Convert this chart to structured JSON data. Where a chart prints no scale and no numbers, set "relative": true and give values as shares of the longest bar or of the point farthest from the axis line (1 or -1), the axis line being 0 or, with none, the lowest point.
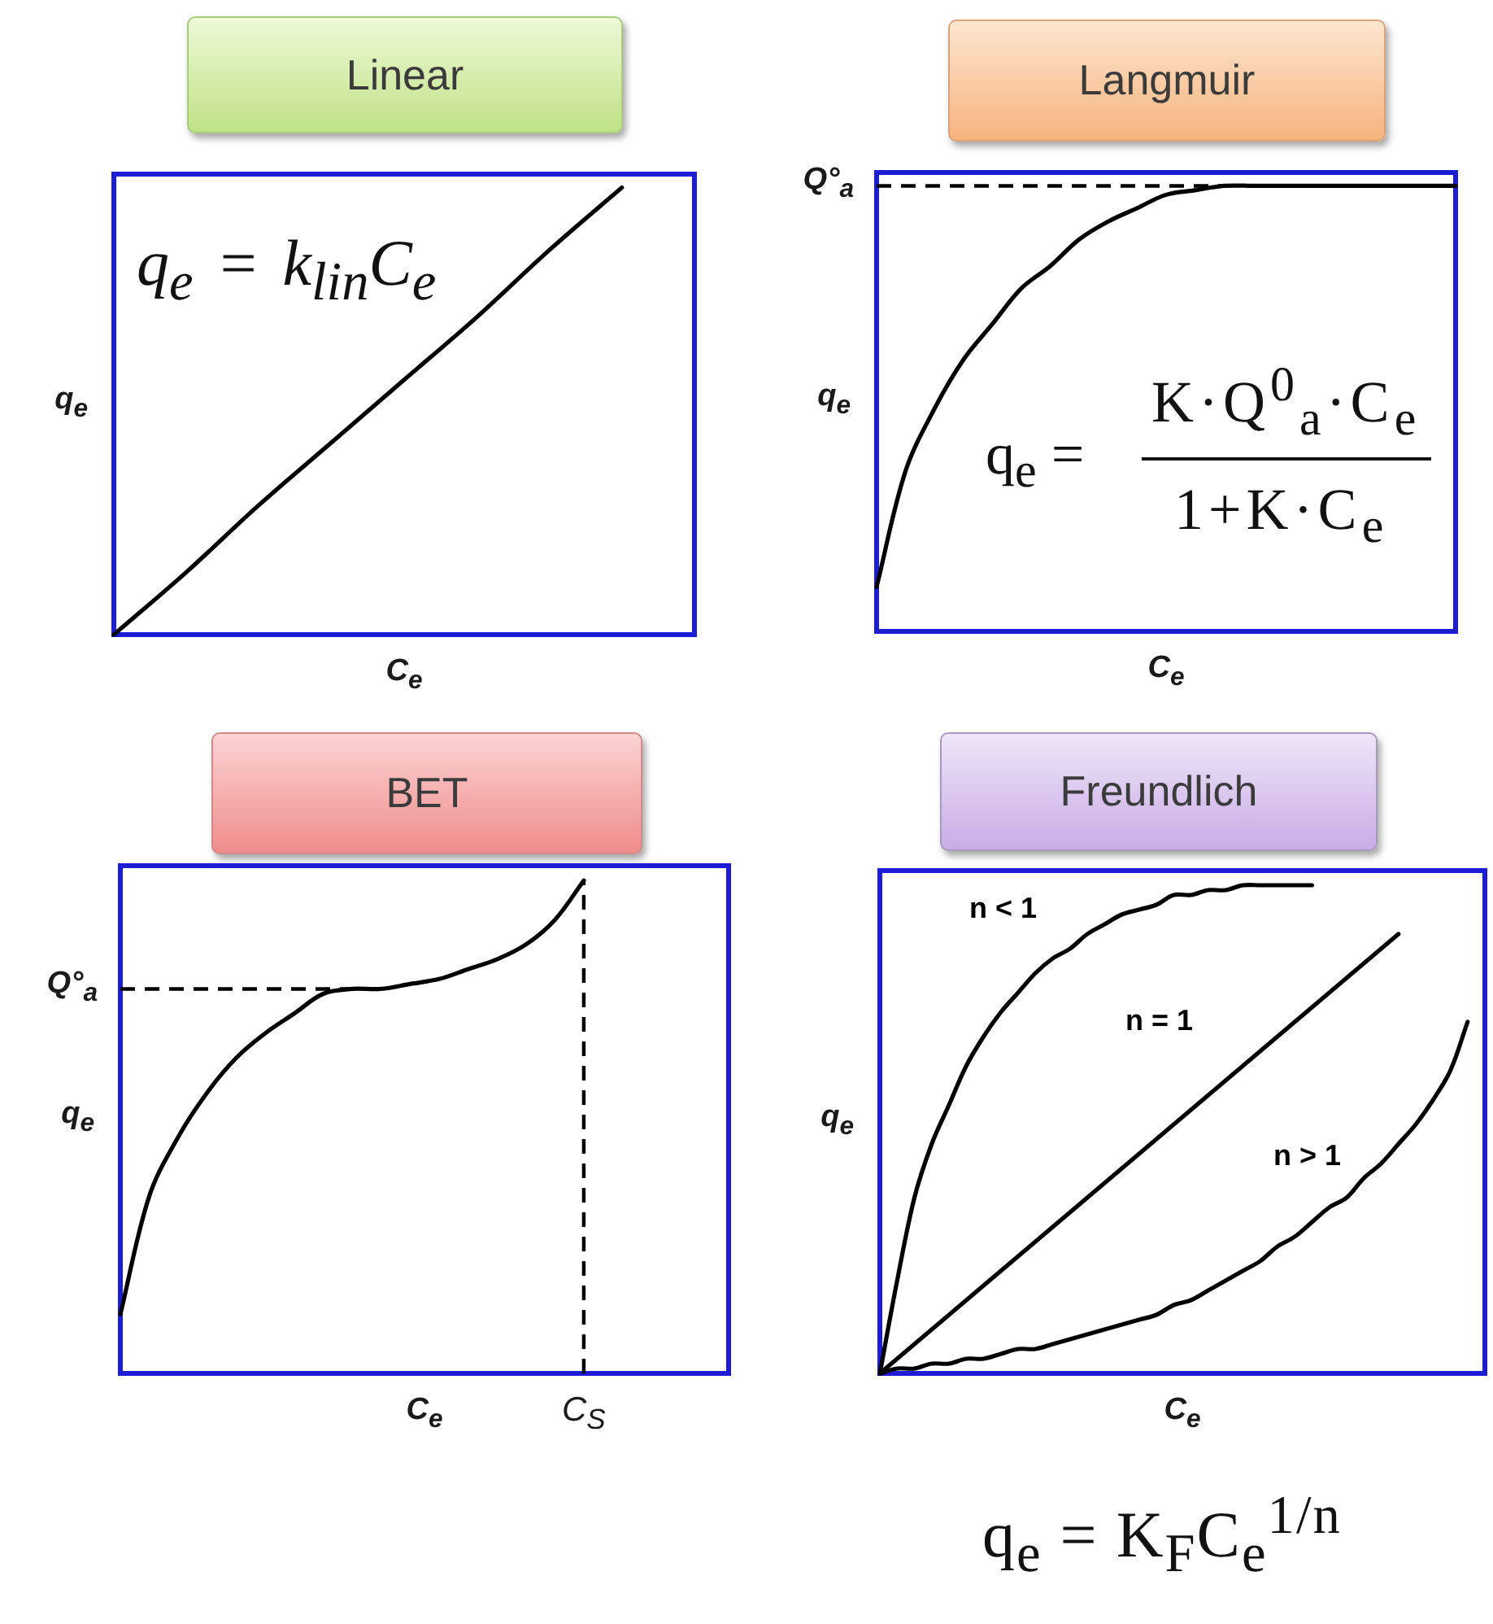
{
  "chart_data": [
    {
      "type": "line",
      "title": "Linear",
      "xlabel": "C$_{e}$",
      "ylabel": "q$_{e}$",
      "relative": true,
      "annotations": [
        "q$_{e}$ =  k$_{lin}$C$_{e}$"
      ],
      "categories": [
        null,
        null,
        null,
        null,
        null,
        null,
        null,
        null,
        null
      ],
      "series": [
        {
          "color": "#000000",
          "values": [
            0,
            0.14,
            0.29,
            0.43,
            0.57,
            0.71,
            0.86,
            1,
            null
          ]
        }
      ]
    },
    {
      "type": "line",
      "title": "Langmuir",
      "xlabel": "C$_{e}$",
      "ylabel": "q$_{e}$",
      "relative": true,
      "annotations": [
        "q$_{e}$ =",
        "K·Q$^{0}$$_{a}$·C$_{e}$",
        "1+K·C$_{e}$"
      ],
      "categories": [
        null,
        null,
        null,
        null,
        null,
        null,
        null,
        null,
        null,
        null,
        null,
        null,
        null,
        null,
        null,
        null,
        null,
        null,
        null,
        null,
        null
      ],
      "series": [
        {
          "color": "#000000",
          "values": [
            0.1,
            0.36,
            0.5,
            0.61,
            0.69,
            0.77,
            0.82,
            0.88,
            0.92,
            0.95,
            0.98,
            0.99,
            1,
            1,
            1,
            1,
            1,
            1,
            1,
            1,
            1
          ]
        }
      ],
      "ref_lines": [
        {
          "axis": "y",
          "value": 1,
          "label": "Q°$_{a}$",
          "color": "#000000",
          "line_style": "dashed"
        }
      ]
    },
    {
      "type": "line",
      "title": "BET",
      "xlabel": "C$_{e}$",
      "ylabel": "q$_{e}$",
      "relative": true,
      "categories": [
        null,
        null,
        null,
        null,
        null,
        null,
        null,
        null,
        null,
        null,
        null,
        null,
        null,
        null,
        null,
        null,
        null,
        null,
        null,
        null,
        null,
        null
      ],
      "series": [
        {
          "color": "#000000",
          "values": [
            0.12,
            0.36,
            0.48,
            0.57,
            0.64,
            0.69,
            0.73,
            0.77,
            0.78,
            0.78,
            0.79,
            0.8,
            0.82,
            0.84,
            0.87,
            0.92,
            1,
            null,
            null,
            null,
            null,
            null
          ]
        }
      ],
      "ref_lines": [
        {
          "axis": "y",
          "value": 0.78,
          "label": "Q°$_{a}$",
          "color": "#000000",
          "line_style": "dashed"
        },
        {
          "axis": "x",
          "value": "C$_{S}$",
          "color": "#000000",
          "line_style": "dashed"
        }
      ]
    },
    {
      "type": "line",
      "title": "Freundlich",
      "xlabel": "C$_{e}$",
      "ylabel": "q$_{e}$",
      "relative": true,
      "annotations": [
        "q$_{e}$ = K$_{F}$C$_{e}$$^{1/n}$"
      ],
      "categories": [
        null,
        null,
        null,
        null,
        null,
        null,
        null,
        null,
        null,
        null,
        null,
        null,
        null,
        null,
        null,
        null,
        null,
        null,
        null,
        null,
        null,
        null,
        null,
        null,
        null,
        null,
        null,
        null,
        null,
        null,
        null,
        null,
        null,
        null,
        null,
        null
      ],
      "series": [
        {
          "name": "n < 1",
          "color": "#000000",
          "values": [
            0,
            0.19,
            0.36,
            0.47,
            0.55,
            0.63,
            0.69,
            0.74,
            0.78,
            0.82,
            0.85,
            0.87,
            0.9,
            0.92,
            0.94,
            0.95,
            0.96,
            0.98,
            0.98,
            0.99,
            0.99,
            1,
            1,
            1,
            1,
            1,
            null,
            null,
            null,
            null,
            null,
            null,
            null,
            null,
            null,
            null
          ]
        },
        {
          "name": "n = 1",
          "color": "#000000",
          "values": [
            0,
            0.03,
            0.06,
            0.09,
            0.12,
            0.15,
            0.18,
            0.21,
            0.24,
            0.27,
            0.3,
            0.33,
            0.36,
            0.39,
            0.42,
            0.45,
            0.48,
            0.51,
            0.54,
            0.57,
            0.6,
            0.63,
            0.66,
            0.69,
            0.72,
            0.75,
            0.78,
            0.81,
            0.84,
            0.87,
            0.9,
            null,
            null,
            null,
            null,
            null
          ]
        },
        {
          "name": "n > 1",
          "color": "#000000",
          "values": [
            0,
            0.01,
            0.01,
            0.02,
            0.02,
            0.03,
            0.03,
            0.04,
            0.05,
            0.05,
            0.06,
            0.07,
            0.08,
            0.09,
            0.1,
            0.11,
            0.12,
            0.14,
            0.15,
            0.17,
            0.19,
            0.21,
            0.23,
            0.26,
            0.28,
            0.31,
            0.34,
            0.36,
            0.4,
            0.43,
            0.47,
            0.51,
            0.56,
            0.62,
            0.72,
            null
          ]
        }
      ]
    }
  ]
}
